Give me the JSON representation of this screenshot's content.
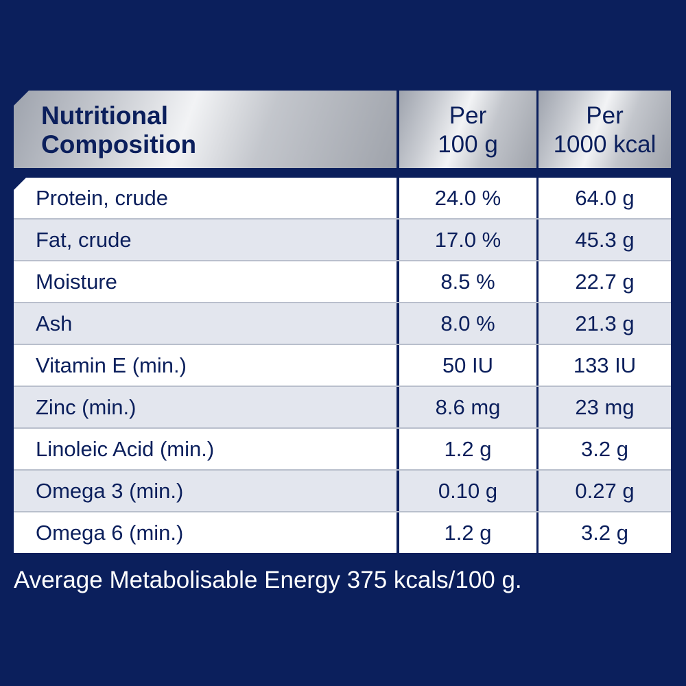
{
  "table": {
    "headers": [
      {
        "lines": [
          "Nutritional",
          "Composition"
        ]
      },
      {
        "lines": [
          "Per",
          "100 g"
        ]
      },
      {
        "lines": [
          "Per",
          "1000 kcal"
        ]
      }
    ],
    "rows": [
      {
        "nutrient": "Protein, crude",
        "per_100g": "24.0 %",
        "per_1000kcal": "64.0 g"
      },
      {
        "nutrient": "Fat, crude",
        "per_100g": "17.0 %",
        "per_1000kcal": "45.3 g"
      },
      {
        "nutrient": "Moisture",
        "per_100g": "8.5 %",
        "per_1000kcal": "22.7 g"
      },
      {
        "nutrient": "Ash",
        "per_100g": "8.0 %",
        "per_1000kcal": "21.3 g"
      },
      {
        "nutrient": "Vitamin E (min.)",
        "per_100g": "50 IU",
        "per_1000kcal": "133 IU"
      },
      {
        "nutrient": "Zinc (min.)",
        "per_100g": "8.6 mg",
        "per_1000kcal": "23 mg"
      },
      {
        "nutrient": "Linoleic Acid (min.)",
        "per_100g": "1.2 g",
        "per_1000kcal": "3.2 g"
      },
      {
        "nutrient": "Omega 3 (min.)",
        "per_100g": "0.10 g",
        "per_1000kcal": "0.27 g"
      },
      {
        "nutrient": "Omega 6 (min.)",
        "per_100g": "1.2 g",
        "per_1000kcal": "3.2 g"
      }
    ]
  },
  "footnote": "Average Metabolisable Energy 375 kcals/100 g.",
  "colors": {
    "background": "#0b1f5c",
    "text_dark": "#0b1f5c",
    "row_alt": "#e3e6ee",
    "row_white": "#ffffff"
  }
}
